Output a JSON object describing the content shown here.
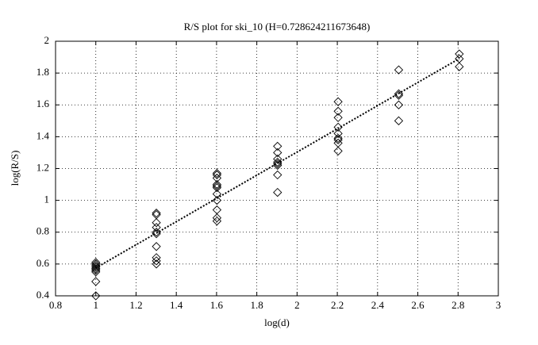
{
  "chart_data": {
    "type": "scatter",
    "title": "R/S plot for ski_10 (H=0.728624211673648)",
    "x_label": "log(d)",
    "y_label": "log(R/S)",
    "xlim": [
      0.8,
      3
    ],
    "ylim": [
      0.4,
      2
    ],
    "xticks": [
      0.8,
      1,
      1.2,
      1.4,
      1.6,
      1.8,
      2,
      2.2,
      2.4,
      2.6,
      2.8,
      3
    ],
    "yticks": [
      0.4,
      0.6,
      0.8,
      1,
      1.2,
      1.4,
      1.6,
      1.8,
      2
    ],
    "grid": true,
    "series": [
      {
        "marker": "diamond",
        "color": "#000000",
        "x": [
          1,
          1,
          1,
          1,
          1,
          1,
          1,
          1,
          1,
          1,
          1.301,
          1.301,
          1.301,
          1.301,
          1.301,
          1.301,
          1.301,
          1.301,
          1.301,
          1.301,
          1.602,
          1.602,
          1.602,
          1.602,
          1.602,
          1.602,
          1.602,
          1.602,
          1.602,
          1.602,
          1.602,
          1.903,
          1.903,
          1.903,
          1.903,
          1.903,
          1.903,
          1.903,
          1.903,
          2.204,
          2.204,
          2.204,
          2.204,
          2.204,
          2.204,
          2.204,
          2.204,
          2.204,
          2.505,
          2.505,
          2.505,
          2.505,
          2.505,
          2.806,
          2.806,
          2.806
        ],
        "values": [
          0.4,
          0.49,
          0.55,
          0.56,
          0.57,
          0.57,
          0.58,
          0.59,
          0.6,
          0.61,
          0.92,
          0.91,
          0.86,
          0.83,
          0.8,
          0.79,
          0.71,
          0.64,
          0.62,
          0.6,
          1.17,
          1.16,
          1.14,
          1.1,
          1.09,
          1.08,
          1.04,
          1.0,
          0.94,
          0.89,
          0.87,
          1.34,
          1.3,
          1.26,
          1.24,
          1.23,
          1.22,
          1.16,
          1.05,
          1.62,
          1.56,
          1.52,
          1.46,
          1.42,
          1.39,
          1.38,
          1.36,
          1.31,
          1.82,
          1.67,
          1.66,
          1.6,
          1.5,
          1.92,
          1.89,
          1.84
        ]
      },
      {
        "marker": "none",
        "line_style": "dotted",
        "color": "#000000",
        "x": [
          1,
          2.806
        ],
        "values": [
          0.575,
          1.891
        ]
      }
    ]
  }
}
